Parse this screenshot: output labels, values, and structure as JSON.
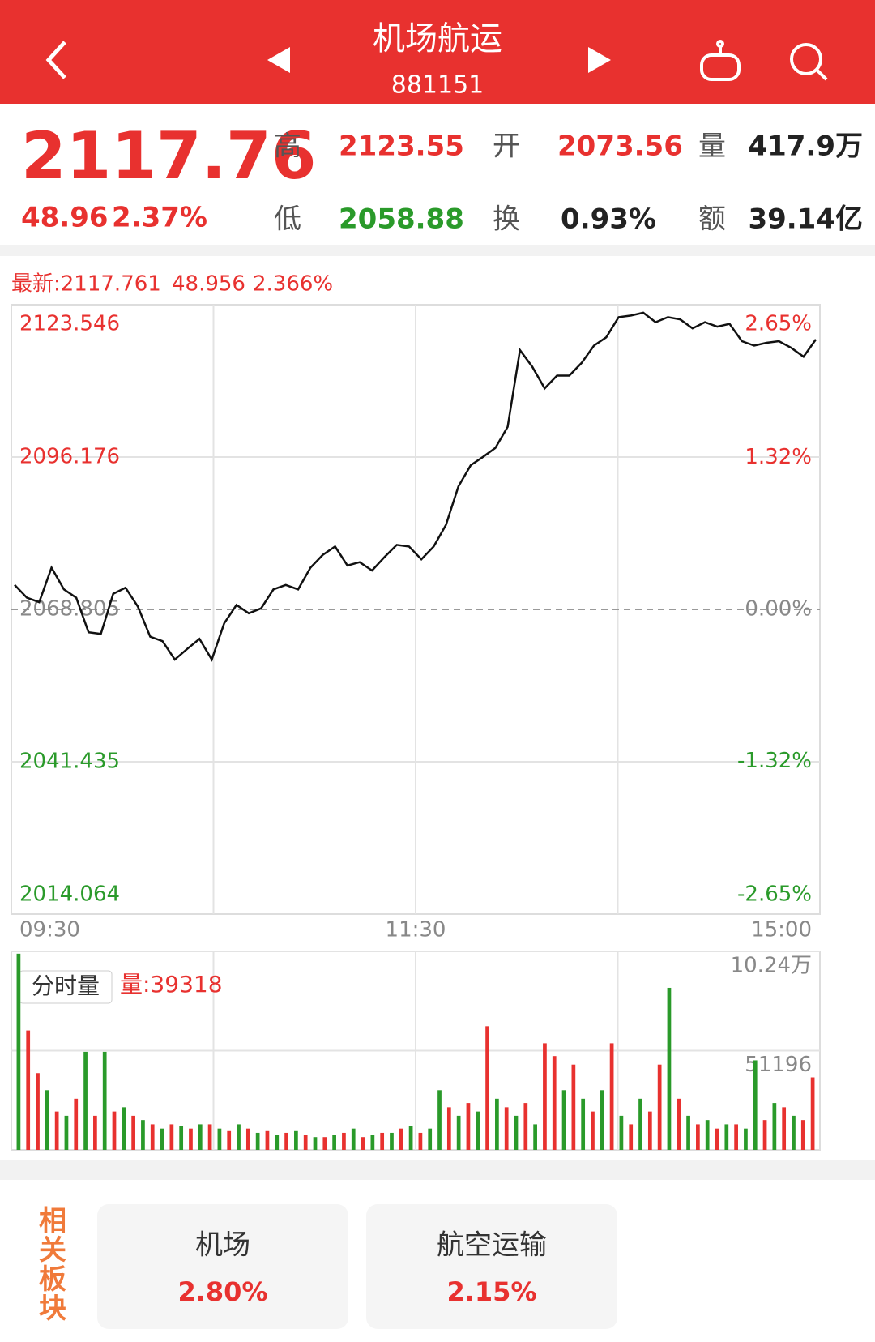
{
  "header": {
    "title": "机场航运",
    "code": "881151"
  },
  "quote": {
    "price": "2117.76",
    "change": "48.96",
    "change_pct": "2.37%",
    "fields": [
      {
        "label": "高",
        "value": "2123.55",
        "color": "#e8312f"
      },
      {
        "label": "开",
        "value": "2073.56",
        "color": "#e8312f"
      },
      {
        "label": "量",
        "value": "417.9万",
        "color": "#222222"
      },
      {
        "label": "低",
        "value": "2058.88",
        "color": "#2a9a2a"
      },
      {
        "label": "换",
        "value": "0.93%",
        "color": "#222222"
      },
      {
        "label": "额",
        "value": "39.14亿",
        "color": "#222222"
      }
    ]
  },
  "latest": {
    "price": "最新:2117.761",
    "change": "48.956",
    "change_pct": "2.366%"
  },
  "chart_data": [
    {
      "type": "line",
      "color": "#111111",
      "ylim": [
        2014.064,
        2123.546
      ],
      "yticks": [
        2123.546,
        2096.176,
        2068.805,
        2041.435,
        2014.064
      ],
      "y2lim": [
        -2.65,
        2.65
      ],
      "y2ticks": [
        {
          "value": 2.65,
          "label": "2.65%"
        },
        {
          "value": 1.32,
          "label": "1.32%"
        },
        {
          "value": 0,
          "label": "0.00%"
        },
        {
          "value": -1.32,
          "label": "-1.32%"
        },
        {
          "value": -2.65,
          "label": "-2.65%"
        }
      ],
      "xticks": [
        "09:30",
        "11:30",
        "15:00"
      ],
      "values": [
        2073.2,
        2070.9,
        2070.1,
        2076.3,
        2072.4,
        2070.9,
        2064.7,
        2064.4,
        2071.6,
        2072.7,
        2069.3,
        2063.9,
        2063.1,
        2059.8,
        2061.7,
        2063.5,
        2059.8,
        2066.3,
        2069.6,
        2068.1,
        2069.0,
        2072.4,
        2073.2,
        2072.4,
        2076.3,
        2078.6,
        2080.1,
        2076.7,
        2077.3,
        2075.8,
        2078.2,
        2080.4,
        2080.1,
        2077.8,
        2080.1,
        2084.0,
        2090.9,
        2094.7,
        2096.2,
        2097.8,
        2101.6,
        2115.4,
        2112.4,
        2108.5,
        2110.8,
        2110.8,
        2113.1,
        2116.2,
        2117.7,
        2121.3,
        2121.6,
        2122.1,
        2120.4,
        2121.3,
        2120.9,
        2119.3,
        2120.4,
        2119.6,
        2120.1,
        2117.0,
        2116.2,
        2116.7,
        2117.0,
        2115.8,
        2114.2,
        2117.3
      ]
    },
    {
      "type": "bar",
      "title": "分时量",
      "current": "量:39318",
      "ylim": [
        0,
        102392
      ],
      "yticks": [
        {
          "value": 102392,
          "label": "10.24万"
        },
        51196
      ],
      "colors": {
        "up": "#e8312f",
        "down": "#2a9a2a"
      },
      "values": [
        101200,
        61600,
        39600,
        30800,
        19800,
        17600,
        26400,
        50600,
        17600,
        50600,
        19800,
        22000,
        17600,
        15400,
        13200,
        11000,
        13200,
        12300,
        11000,
        13200,
        13200,
        11000,
        9700,
        13200,
        11000,
        8800,
        9700,
        7900,
        8800,
        9700,
        7900,
        6600,
        6600,
        7900,
        8800,
        11000,
        6600,
        7900,
        8800,
        8800,
        11000,
        12300,
        8800,
        11000,
        30800,
        22000,
        17600,
        24200,
        19800,
        63800,
        26400,
        22000,
        17600,
        24200,
        13200,
        55000,
        48400,
        30800,
        44000,
        26400,
        19800,
        30800,
        55000,
        17600,
        13200,
        26400,
        19800,
        44000,
        83600,
        26400,
        17600,
        13200,
        15400,
        11000,
        13200,
        13200,
        11000,
        46200,
        15400,
        24200,
        22000,
        17600,
        15400,
        37400
      ],
      "rising": [
        false,
        true,
        true,
        false,
        true,
        false,
        true,
        false,
        true,
        false,
        true,
        false,
        true,
        false,
        true,
        false,
        true,
        false,
        true,
        false,
        true,
        false,
        true,
        false,
        true,
        false,
        true,
        false,
        true,
        false,
        true,
        false,
        true,
        false,
        true,
        false,
        true,
        false,
        true,
        false,
        true,
        false,
        true,
        false,
        false,
        true,
        false,
        true,
        false,
        true,
        false,
        true,
        false,
        true,
        false,
        true,
        true,
        false,
        true,
        false,
        true,
        false,
        true,
        false,
        true,
        false,
        true,
        true,
        false,
        true,
        false,
        true,
        false,
        true,
        false,
        true,
        false,
        false,
        true,
        false,
        true,
        false,
        true,
        true
      ]
    }
  ],
  "related": {
    "title": "相关板块",
    "items": [
      {
        "name": "机场",
        "change": "2.80%"
      },
      {
        "name": "航空运输",
        "change": "2.15%"
      }
    ]
  }
}
